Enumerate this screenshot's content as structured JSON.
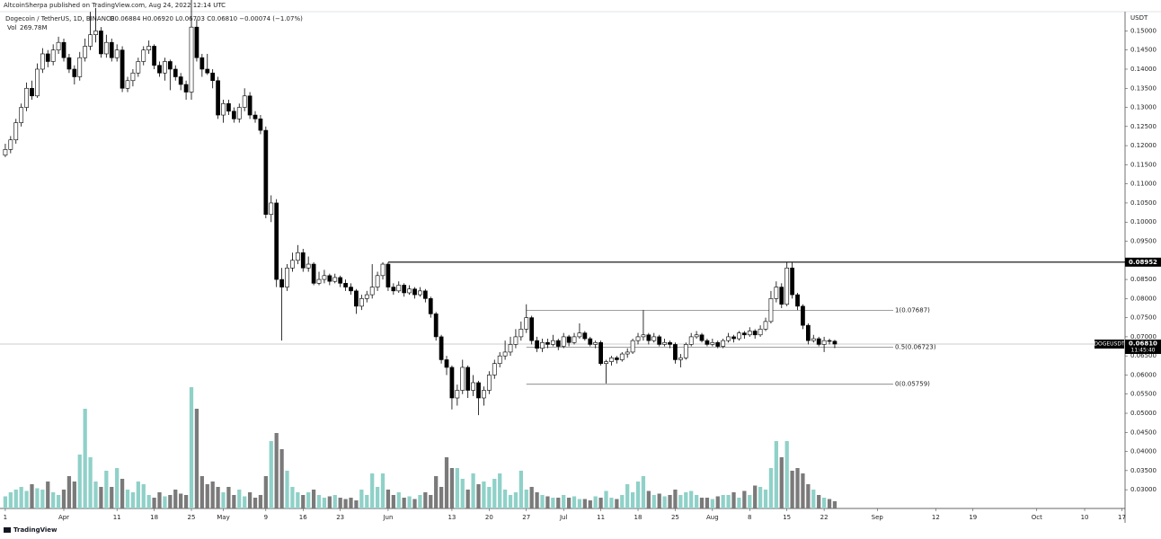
{
  "header": {
    "publisher": "AltcoinSherpa published on TradingView.com, Aug 24, 2022 12:14 UTC",
    "symbol": "Dogecoin / TetherUS, 1D, BINANCE",
    "ohlc_legend": "O0.06884 H0.06920 L0.06703 C0.06810 −0.00074 (−1.07%)",
    "volume_title": "Vol",
    "volume_value": "269.78M"
  },
  "footer": "TradingView",
  "chart_data": {
    "type": "candlestick",
    "currency": "USDT",
    "xlim": [
      -1,
      210.6
    ],
    "xticks": [
      {
        "value": 0,
        "label": "1"
      },
      {
        "value": 11,
        "label": "Apr"
      },
      {
        "value": 21,
        "label": "11"
      },
      {
        "value": 28,
        "label": "18"
      },
      {
        "value": 35,
        "label": "25"
      },
      {
        "value": 41,
        "label": "May"
      },
      {
        "value": 49,
        "label": "9"
      },
      {
        "value": 56,
        "label": "16"
      },
      {
        "value": 63,
        "label": "23"
      },
      {
        "value": 72,
        "label": "Jun"
      },
      {
        "value": 84,
        "label": "13"
      },
      {
        "value": 91,
        "label": "20"
      },
      {
        "value": 98,
        "label": "27"
      },
      {
        "value": 105,
        "label": "Jul"
      },
      {
        "value": 112,
        "label": "11"
      },
      {
        "value": 119,
        "label": "18"
      },
      {
        "value": 126,
        "label": "25"
      },
      {
        "value": 133,
        "label": "Aug"
      },
      {
        "value": 140,
        "label": "8"
      },
      {
        "value": 147,
        "label": "15"
      },
      {
        "value": 154,
        "label": "22"
      },
      {
        "value": 164,
        "label": "Sep"
      },
      {
        "value": 175,
        "label": "12"
      },
      {
        "value": 182,
        "label": "19"
      },
      {
        "value": 194,
        "label": "Oct"
      },
      {
        "value": 203,
        "label": "10"
      },
      {
        "value": 210,
        "label": "17"
      }
    ],
    "ylim": [
      0.0251,
      0.1548
    ],
    "yticks": [
      {
        "value": 0.03,
        "label": "0.03000"
      },
      {
        "value": 0.035,
        "label": "0.03500"
      },
      {
        "value": 0.04,
        "label": "0.04000"
      },
      {
        "value": 0.045,
        "label": "0.04500"
      },
      {
        "value": 0.05,
        "label": "0.05000"
      },
      {
        "value": 0.055,
        "label": "0.05500"
      },
      {
        "value": 0.06,
        "label": "0.06000"
      },
      {
        "value": 0.065,
        "label": "0.06500"
      },
      {
        "value": 0.07,
        "label": "0.07000"
      },
      {
        "value": 0.075,
        "label": "0.07500"
      },
      {
        "value": 0.08,
        "label": "0.08000"
      },
      {
        "value": 0.085,
        "label": "0.08500"
      },
      {
        "value": 0.09,
        "label": "0.09000"
      },
      {
        "value": 0.095,
        "label": "0.09500"
      },
      {
        "value": 0.1,
        "label": "0.10000"
      },
      {
        "value": 0.105,
        "label": "0.10500"
      },
      {
        "value": 0.11,
        "label": "0.11000"
      },
      {
        "value": 0.115,
        "label": "0.11500"
      },
      {
        "value": 0.12,
        "label": "0.12000"
      },
      {
        "value": 0.125,
        "label": "0.12500"
      },
      {
        "value": 0.13,
        "label": "0.13000"
      },
      {
        "value": 0.135,
        "label": "0.13500"
      },
      {
        "value": 0.14,
        "label": "0.14000"
      },
      {
        "value": 0.145,
        "label": "0.14500"
      },
      {
        "value": 0.15,
        "label": "0.15000"
      }
    ],
    "grid": false,
    "up_color": "#ffffff",
    "down_color": "#000000",
    "wick_color": "#000000",
    "volume_up_color": "#8fd1c8",
    "volume_down_color": "#7a7a7a",
    "vlim": [
      0,
      5000
    ],
    "ohlc": [
      [
        0.1175,
        0.1205,
        0.117,
        0.119
      ],
      [
        0.119,
        0.1225,
        0.118,
        0.1215
      ],
      [
        0.1215,
        0.127,
        0.1205,
        0.126
      ],
      [
        0.126,
        0.131,
        0.125,
        0.13
      ],
      [
        0.13,
        0.1365,
        0.129,
        0.135
      ],
      [
        0.135,
        0.137,
        0.132,
        0.133
      ],
      [
        0.133,
        0.1415,
        0.1325,
        0.14
      ],
      [
        0.14,
        0.1455,
        0.139,
        0.144
      ],
      [
        0.144,
        0.145,
        0.1405,
        0.142
      ],
      [
        0.142,
        0.1465,
        0.141,
        0.145
      ],
      [
        0.145,
        0.1485,
        0.144,
        0.147
      ],
      [
        0.147,
        0.148,
        0.142,
        0.143
      ],
      [
        0.143,
        0.144,
        0.139,
        0.14
      ],
      [
        0.14,
        0.141,
        0.136,
        0.138
      ],
      [
        0.138,
        0.1445,
        0.137,
        0.143
      ],
      [
        0.143,
        0.148,
        0.142,
        0.146
      ],
      [
        0.146,
        0.155,
        0.145,
        0.149
      ],
      [
        0.149,
        0.156,
        0.147,
        0.15
      ],
      [
        0.15,
        0.151,
        0.143,
        0.144
      ],
      [
        0.144,
        0.149,
        0.143,
        0.147
      ],
      [
        0.147,
        0.148,
        0.142,
        0.143
      ],
      [
        0.143,
        0.1465,
        0.142,
        0.145
      ],
      [
        0.145,
        0.146,
        0.134,
        0.135
      ],
      [
        0.135,
        0.138,
        0.134,
        0.137
      ],
      [
        0.137,
        0.14,
        0.1355,
        0.139
      ],
      [
        0.139,
        0.143,
        0.138,
        0.142
      ],
      [
        0.142,
        0.146,
        0.141,
        0.145
      ],
      [
        0.145,
        0.1475,
        0.144,
        0.146
      ],
      [
        0.146,
        0.1465,
        0.14,
        0.141
      ],
      [
        0.141,
        0.142,
        0.138,
        0.139
      ],
      [
        0.139,
        0.143,
        0.137,
        0.142
      ],
      [
        0.142,
        0.1425,
        0.1345,
        0.14
      ],
      [
        0.14,
        0.141,
        0.137,
        0.138
      ],
      [
        0.138,
        0.139,
        0.1345,
        0.136
      ],
      [
        0.136,
        0.137,
        0.132,
        0.134
      ],
      [
        0.134,
        0.162,
        0.132,
        0.151
      ],
      [
        0.151,
        0.153,
        0.142,
        0.143
      ],
      [
        0.143,
        0.144,
        0.138,
        0.14
      ],
      [
        0.14,
        0.144,
        0.1385,
        0.139
      ],
      [
        0.139,
        0.14,
        0.135,
        0.137
      ],
      [
        0.137,
        0.138,
        0.127,
        0.128
      ],
      [
        0.128,
        0.132,
        0.126,
        0.131
      ],
      [
        0.131,
        0.132,
        0.128,
        0.129
      ],
      [
        0.129,
        0.13,
        0.126,
        0.127
      ],
      [
        0.127,
        0.131,
        0.126,
        0.13
      ],
      [
        0.13,
        0.135,
        0.129,
        0.133
      ],
      [
        0.133,
        0.134,
        0.127,
        0.128
      ],
      [
        0.128,
        0.129,
        0.126,
        0.127
      ],
      [
        0.127,
        0.128,
        0.123,
        0.124
      ],
      [
        0.124,
        0.125,
        0.101,
        0.102
      ],
      [
        0.102,
        0.107,
        0.1,
        0.105
      ],
      [
        0.105,
        0.106,
        0.083,
        0.085
      ],
      [
        0.085,
        0.088,
        0.069,
        0.083
      ],
      [
        0.083,
        0.089,
        0.082,
        0.088
      ],
      [
        0.088,
        0.092,
        0.087,
        0.09
      ],
      [
        0.09,
        0.094,
        0.089,
        0.092
      ],
      [
        0.092,
        0.093,
        0.087,
        0.088
      ],
      [
        0.088,
        0.091,
        0.087,
        0.089
      ],
      [
        0.089,
        0.0895,
        0.0835,
        0.084
      ],
      [
        0.084,
        0.087,
        0.0835,
        0.085
      ],
      [
        0.085,
        0.0875,
        0.084,
        0.086
      ],
      [
        0.086,
        0.0865,
        0.0835,
        0.0845
      ],
      [
        0.0845,
        0.0865,
        0.084,
        0.0855
      ],
      [
        0.0855,
        0.086,
        0.083,
        0.084
      ],
      [
        0.084,
        0.085,
        0.082,
        0.083
      ],
      [
        0.083,
        0.084,
        0.081,
        0.082
      ],
      [
        0.082,
        0.0825,
        0.076,
        0.078
      ],
      [
        0.078,
        0.081,
        0.077,
        0.08
      ],
      [
        0.08,
        0.082,
        0.079,
        0.081
      ],
      [
        0.081,
        0.089,
        0.08,
        0.083
      ],
      [
        0.083,
        0.087,
        0.082,
        0.086
      ],
      [
        0.086,
        0.0895,
        0.085,
        0.089
      ],
      [
        0.089,
        0.0895,
        0.082,
        0.083
      ],
      [
        0.083,
        0.084,
        0.081,
        0.082
      ],
      [
        0.082,
        0.0845,
        0.0815,
        0.0835
      ],
      [
        0.0835,
        0.084,
        0.0805,
        0.0815
      ],
      [
        0.0815,
        0.0835,
        0.081,
        0.0825
      ],
      [
        0.0825,
        0.083,
        0.08,
        0.081
      ],
      [
        0.081,
        0.083,
        0.0805,
        0.082
      ],
      [
        0.082,
        0.0825,
        0.079,
        0.08
      ],
      [
        0.08,
        0.0805,
        0.075,
        0.076
      ],
      [
        0.076,
        0.0765,
        0.069,
        0.07
      ],
      [
        0.07,
        0.0705,
        0.063,
        0.064
      ],
      [
        0.064,
        0.065,
        0.06,
        0.062
      ],
      [
        0.062,
        0.0625,
        0.051,
        0.054
      ],
      [
        0.054,
        0.0575,
        0.052,
        0.056
      ],
      [
        0.056,
        0.064,
        0.055,
        0.062
      ],
      [
        0.062,
        0.0625,
        0.054,
        0.056
      ],
      [
        0.056,
        0.06,
        0.0545,
        0.058
      ],
      [
        0.058,
        0.0585,
        0.0495,
        0.054
      ],
      [
        0.054,
        0.057,
        0.052,
        0.056
      ],
      [
        0.056,
        0.061,
        0.055,
        0.06
      ],
      [
        0.06,
        0.064,
        0.059,
        0.063
      ],
      [
        0.063,
        0.066,
        0.062,
        0.065
      ],
      [
        0.065,
        0.069,
        0.064,
        0.066
      ],
      [
        0.066,
        0.07,
        0.065,
        0.068
      ],
      [
        0.068,
        0.072,
        0.067,
        0.07
      ],
      [
        0.07,
        0.074,
        0.069,
        0.072
      ],
      [
        0.072,
        0.0785,
        0.071,
        0.075
      ],
      [
        0.075,
        0.0755,
        0.068,
        0.069
      ],
      [
        0.069,
        0.07,
        0.066,
        0.067
      ],
      [
        0.067,
        0.0695,
        0.066,
        0.0685
      ],
      [
        0.0685,
        0.0695,
        0.067,
        0.068
      ],
      [
        0.068,
        0.0705,
        0.0675,
        0.069
      ],
      [
        0.069,
        0.0695,
        0.0665,
        0.0675
      ],
      [
        0.0675,
        0.071,
        0.067,
        0.07
      ],
      [
        0.07,
        0.0705,
        0.0675,
        0.0685
      ],
      [
        0.0685,
        0.071,
        0.068,
        0.07
      ],
      [
        0.07,
        0.0735,
        0.0695,
        0.071
      ],
      [
        0.071,
        0.0715,
        0.069,
        0.0695
      ],
      [
        0.0695,
        0.07,
        0.0675,
        0.068
      ],
      [
        0.068,
        0.069,
        0.067,
        0.0685
      ],
      [
        0.0685,
        0.069,
        0.0625,
        0.063
      ],
      [
        0.063,
        0.064,
        0.0578,
        0.0635
      ],
      [
        0.0635,
        0.065,
        0.0625,
        0.0645
      ],
      [
        0.0645,
        0.065,
        0.063,
        0.064
      ],
      [
        0.064,
        0.066,
        0.0635,
        0.0655
      ],
      [
        0.0655,
        0.067,
        0.0645,
        0.066
      ],
      [
        0.066,
        0.0695,
        0.0655,
        0.069
      ],
      [
        0.069,
        0.071,
        0.068,
        0.07
      ],
      [
        0.07,
        0.077,
        0.069,
        0.0705
      ],
      [
        0.0705,
        0.071,
        0.068,
        0.069
      ],
      [
        0.069,
        0.071,
        0.0685,
        0.07
      ],
      [
        0.07,
        0.0705,
        0.0675,
        0.068
      ],
      [
        0.068,
        0.0695,
        0.0675,
        0.0685
      ],
      [
        0.0685,
        0.069,
        0.067,
        0.068
      ],
      [
        0.068,
        0.0685,
        0.063,
        0.064
      ],
      [
        0.064,
        0.0655,
        0.062,
        0.0645
      ],
      [
        0.0645,
        0.0685,
        0.064,
        0.068
      ],
      [
        0.068,
        0.071,
        0.0675,
        0.07
      ],
      [
        0.07,
        0.0715,
        0.0695,
        0.0705
      ],
      [
        0.0705,
        0.071,
        0.0685,
        0.069
      ],
      [
        0.069,
        0.0695,
        0.0675,
        0.068
      ],
      [
        0.068,
        0.0695,
        0.0675,
        0.0685
      ],
      [
        0.0685,
        0.069,
        0.067,
        0.0675
      ],
      [
        0.0675,
        0.0695,
        0.067,
        0.069
      ],
      [
        0.069,
        0.071,
        0.0685,
        0.07
      ],
      [
        0.07,
        0.0705,
        0.0685,
        0.0695
      ],
      [
        0.0695,
        0.0715,
        0.069,
        0.071
      ],
      [
        0.071,
        0.0715,
        0.0695,
        0.0705
      ],
      [
        0.0705,
        0.0725,
        0.07,
        0.0715
      ],
      [
        0.0715,
        0.072,
        0.0695,
        0.0705
      ],
      [
        0.0705,
        0.073,
        0.07,
        0.072
      ],
      [
        0.072,
        0.075,
        0.0715,
        0.074
      ],
      [
        0.074,
        0.082,
        0.0735,
        0.08
      ],
      [
        0.08,
        0.0845,
        0.079,
        0.083
      ],
      [
        0.083,
        0.084,
        0.0775,
        0.0785
      ],
      [
        0.0785,
        0.0895,
        0.078,
        0.088
      ],
      [
        0.088,
        0.0895,
        0.08,
        0.081
      ],
      [
        0.081,
        0.0815,
        0.077,
        0.078
      ],
      [
        0.078,
        0.0785,
        0.072,
        0.073
      ],
      [
        0.073,
        0.0735,
        0.068,
        0.069
      ],
      [
        0.069,
        0.0705,
        0.0685,
        0.0695
      ],
      [
        0.0695,
        0.07,
        0.0675,
        0.068
      ],
      [
        0.068,
        0.07,
        0.066,
        0.069
      ],
      [
        0.069,
        0.0695,
        0.068,
        0.06884
      ],
      [
        0.06884,
        0.0692,
        0.06703,
        0.0681
      ]
    ],
    "volume": [
      450,
      600,
      700,
      800,
      650,
      900,
      750,
      700,
      1000,
      600,
      500,
      700,
      1200,
      1000,
      2000,
      3700,
      1900,
      1000,
      800,
      1400,
      800,
      1500,
      1100,
      700,
      600,
      1000,
      900,
      500,
      400,
      600,
      450,
      500,
      700,
      550,
      500,
      4500,
      3700,
      1200,
      900,
      1000,
      800,
      600,
      800,
      500,
      700,
      450,
      600,
      400,
      500,
      1200,
      2500,
      2800,
      2200,
      1400,
      800,
      600,
      500,
      600,
      700,
      500,
      400,
      450,
      500,
      400,
      350,
      400,
      300,
      700,
      500,
      1300,
      800,
      1300,
      700,
      500,
      600,
      400,
      450,
      350,
      500,
      600,
      500,
      1200,
      800,
      1900,
      1500,
      1500,
      1100,
      700,
      1300,
      900,
      1000,
      800,
      1100,
      1300,
      700,
      500,
      600,
      1400,
      700,
      800,
      600,
      500,
      450,
      400,
      400,
      500,
      400,
      450,
      350,
      350,
      300,
      450,
      400,
      650,
      400,
      350,
      500,
      900,
      600,
      1000,
      1200,
      650,
      500,
      550,
      450,
      500,
      700,
      500,
      600,
      650,
      500,
      400,
      400,
      350,
      450,
      500,
      500,
      600,
      400,
      650,
      500,
      850,
      800,
      700,
      1500,
      2500,
      1900,
      2500,
      1400,
      1500,
      1300,
      900,
      700,
      500,
      400,
      350,
      269.78
    ],
    "range_high": 0.08952,
    "fib_levels": [
      {
        "value": 0.07687,
        "label": "1(0.07687)"
      },
      {
        "value": 0.06723,
        "label": "0.5(0.06723)"
      },
      {
        "value": 0.05759,
        "label": "0(0.05759)"
      }
    ],
    "last_price": {
      "value": 0.0681,
      "label": "0.06810"
    },
    "symbol_tag": "DOGEUSDT",
    "countdown": "11:45:40"
  }
}
